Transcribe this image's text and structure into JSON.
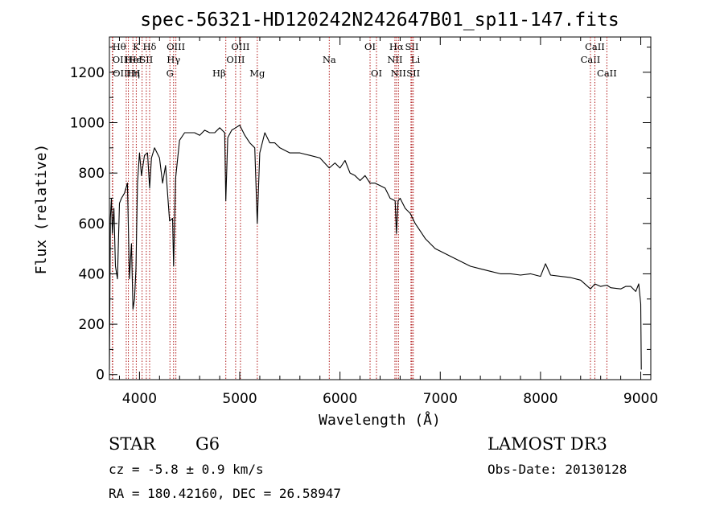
{
  "chart_data": {
    "type": "line",
    "title": "spec-56321-HD120242N242647B01_sp11-147.fits",
    "xlabel": "Wavelength (Å)",
    "ylabel": "Flux (relative)",
    "xlim": [
      3700,
      9100
    ],
    "ylim": [
      -20,
      1340
    ],
    "x_ticks": [
      4000,
      5000,
      6000,
      7000,
      8000,
      9000
    ],
    "y_ticks": [
      0,
      200,
      400,
      600,
      800,
      1000,
      1200
    ],
    "grid": false,
    "series": [
      {
        "x": [
          3700,
          3710,
          3720,
          3730,
          3745,
          3760,
          3780,
          3800,
          3820,
          3850,
          3880,
          3900,
          3920,
          3935,
          3950,
          3965,
          3980,
          4000,
          4020,
          4050,
          4080,
          4101,
          4120,
          4150,
          4200,
          4230,
          4260,
          4300,
          4330,
          4340,
          4360,
          4400,
          4450,
          4500,
          4550,
          4600,
          4650,
          4700,
          4750,
          4800,
          4850,
          4861,
          4880,
          4920,
          4960,
          5000,
          5050,
          5100,
          5150,
          5175,
          5200,
          5250,
          5300,
          5350,
          5400,
          5500,
          5600,
          5700,
          5800,
          5893,
          5950,
          6000,
          6050,
          6100,
          6150,
          6200,
          6250,
          6300,
          6350,
          6400,
          6450,
          6500,
          6550,
          6563,
          6580,
          6600,
          6650,
          6700,
          6750,
          6800,
          6850,
          6900,
          6950,
          7000,
          7050,
          7100,
          7200,
          7300,
          7400,
          7500,
          7600,
          7700,
          7800,
          7900,
          8000,
          8050,
          8100,
          8200,
          8300,
          8400,
          8498,
          8542,
          8600,
          8662,
          8700,
          8800,
          8850,
          8900,
          8950,
          8980,
          9000,
          9005
        ],
        "y": [
          20,
          620,
          700,
          560,
          660,
          430,
          380,
          680,
          700,
          720,
          760,
          380,
          520,
          260,
          300,
          420,
          760,
          880,
          790,
          870,
          880,
          740,
          860,
          900,
          860,
          760,
          830,
          610,
          620,
          430,
          780,
          930,
          960,
          960,
          960,
          950,
          970,
          960,
          960,
          980,
          960,
          690,
          940,
          970,
          980,
          990,
          950,
          920,
          900,
          600,
          880,
          960,
          920,
          920,
          900,
          880,
          880,
          870,
          860,
          820,
          840,
          820,
          850,
          800,
          790,
          770,
          790,
          760,
          760,
          750,
          740,
          700,
          690,
          560,
          690,
          700,
          660,
          640,
          600,
          570,
          540,
          520,
          500,
          490,
          480,
          470,
          450,
          430,
          420,
          410,
          400,
          400,
          395,
          400,
          390,
          440,
          395,
          390,
          385,
          375,
          340,
          360,
          350,
          355,
          345,
          340,
          350,
          350,
          330,
          360,
          280,
          20
        ]
      }
    ],
    "line_markers": [
      {
        "x": 3730,
        "label": "Hθ",
        "row": 1,
        "anchor": "start"
      },
      {
        "x": 3730,
        "label": "OII",
        "row": 2,
        "anchor": "start"
      },
      {
        "x": 3733,
        "label": "OIII",
        "row": 3,
        "anchor": "start"
      },
      {
        "x": 3868,
        "label": "Hη",
        "row": 3,
        "anchor": "start"
      },
      {
        "x": 3889,
        "label": "Hε",
        "row": 2,
        "anchor": "start"
      },
      {
        "x": 3934,
        "label": "K",
        "row": 1,
        "anchor": "start"
      },
      {
        "x": 3968,
        "label": "H",
        "row": 3,
        "anchor": "middle"
      },
      {
        "x": 4026,
        "label": "HeI",
        "row": 2,
        "anchor": "end"
      },
      {
        "x": 4068,
        "label": "SII",
        "row": 2,
        "anchor": "middle"
      },
      {
        "x": 4101,
        "label": "Hδ",
        "row": 1,
        "anchor": "middle"
      },
      {
        "x": 4304,
        "label": "G",
        "row": 3,
        "anchor": "middle"
      },
      {
        "x": 4340,
        "label": "Hγ",
        "row": 2,
        "anchor": "middle"
      },
      {
        "x": 4363,
        "label": "OIII",
        "row": 1,
        "anchor": "middle"
      },
      {
        "x": 4861,
        "label": "Hβ",
        "row": 3,
        "anchor": "end"
      },
      {
        "x": 4959,
        "label": "OIII",
        "row": 2,
        "anchor": "middle"
      },
      {
        "x": 5007,
        "label": "OIII",
        "row": 1,
        "anchor": "middle"
      },
      {
        "x": 5175,
        "label": "Mg",
        "row": 3,
        "anchor": "middle"
      },
      {
        "x": 5893,
        "label": "Na",
        "row": 2,
        "anchor": "middle"
      },
      {
        "x": 6300,
        "label": "OI",
        "row": 1,
        "anchor": "middle"
      },
      {
        "x": 6364,
        "label": "OI",
        "row": 3,
        "anchor": "middle"
      },
      {
        "x": 6548,
        "label": "NII",
        "row": 2,
        "anchor": "middle"
      },
      {
        "x": 6563,
        "label": "Hα",
        "row": 1,
        "anchor": "middle"
      },
      {
        "x": 6583,
        "label": "NII",
        "row": 3,
        "anchor": "middle"
      },
      {
        "x": 6708,
        "label": "Li",
        "row": 2,
        "anchor": "start"
      },
      {
        "x": 6717,
        "label": "SII",
        "row": 1,
        "anchor": "middle"
      },
      {
        "x": 6731,
        "label": "SII",
        "row": 3,
        "anchor": "middle"
      },
      {
        "x": 8498,
        "label": "CaII",
        "row": 2,
        "anchor": "middle"
      },
      {
        "x": 8542,
        "label": "CaII",
        "row": 1,
        "anchor": "middle"
      },
      {
        "x": 8662,
        "label": "CaII",
        "row": 3,
        "anchor": "middle"
      }
    ]
  },
  "footer": {
    "object_type": "STAR",
    "subclass": "G6",
    "redshift": "cz = -5.8 ± 0.9 km/s",
    "coordinates": "RA = 180.42160, DEC =  26.58947",
    "survey": "LAMOST DR3",
    "obs_date": "Obs-Date: 20130128"
  }
}
